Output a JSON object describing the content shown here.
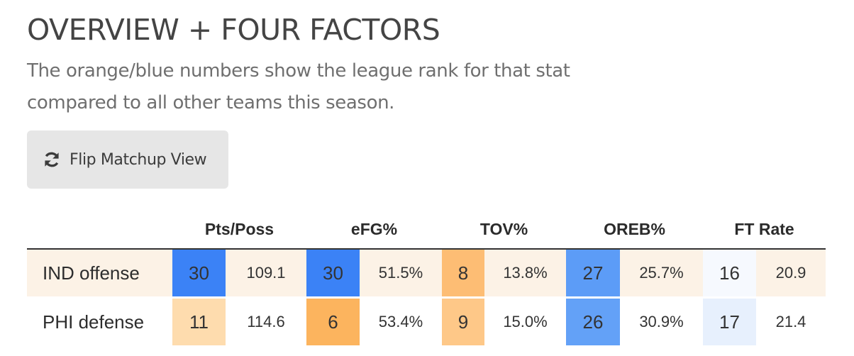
{
  "header": {
    "title": "OVERVIEW + FOUR FACTORS",
    "subtitle_line1": "The orange/blue numbers show the league rank for that stat",
    "subtitle_line2": "compared to all other teams this season."
  },
  "flip_button": {
    "label": "Flip Matchup View",
    "icon": "refresh-icon"
  },
  "table": {
    "columns": [
      "Pts/Poss",
      "eFG%",
      "TOV%",
      "OREB%",
      "FT Rate"
    ],
    "rows": [
      {
        "team": "IND offense",
        "cells": [
          {
            "rank": "30",
            "value": "109.1",
            "color": "#3b82f6"
          },
          {
            "rank": "30",
            "value": "51.5%",
            "color": "#3b82f6"
          },
          {
            "rank": "8",
            "value": "13.8%",
            "color": "#fdbd74"
          },
          {
            "rank": "27",
            "value": "25.7%",
            "color": "#5c9cf7"
          },
          {
            "rank": "16",
            "value": "20.9",
            "color": "#f6f9fe"
          }
        ]
      },
      {
        "team": "PHI defense",
        "cells": [
          {
            "rank": "11",
            "value": "114.6",
            "color": "#fedcae"
          },
          {
            "rank": "6",
            "value": "53.4%",
            "color": "#fcb45e"
          },
          {
            "rank": "9",
            "value": "15.0%",
            "color": "#fec888"
          },
          {
            "rank": "26",
            "value": "30.9%",
            "color": "#63a1f7"
          },
          {
            "rank": "17",
            "value": "21.4",
            "color": "#e7f0fd"
          }
        ]
      }
    ]
  },
  "colors": {
    "offense_row_bg": "#fcf2e6",
    "button_bg": "#e6e6e6"
  }
}
